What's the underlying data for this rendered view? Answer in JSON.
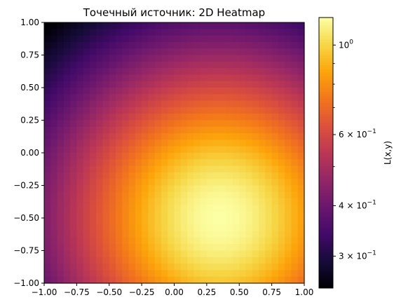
{
  "chart_data": {
    "type": "heatmap",
    "title": "Точечный источник: 2D Heatmap",
    "xlabel": "",
    "ylabel": "",
    "xlim": [
      -1.0,
      1.0
    ],
    "ylim": [
      -1.0,
      1.0
    ],
    "x_ticks": [
      "−1.00",
      "−0.75",
      "−0.50",
      "−0.25",
      "0.00",
      "0.25",
      "0.50",
      "0.75",
      "1.00"
    ],
    "y_ticks": [
      "−1.00",
      "−0.75",
      "−0.50",
      "−0.25",
      "0.00",
      "0.25",
      "0.50",
      "0.75",
      "1.00"
    ],
    "grid": {
      "nx": 40,
      "ny": 40
    },
    "field": {
      "description_of_source": "point source",
      "source_x": 0.35,
      "source_y": -0.5,
      "peak_value": 1.17,
      "model": "L = peak / (1 + ((x-source_x)^2 + (y-source_y)^2) / 1.05)"
    },
    "colormap": "inferno",
    "colorbar": {
      "label": "L(x,y)",
      "scale": "log",
      "range": [
        0.25,
        1.17
      ],
      "major_ticks": [
        {
          "value": 1.0,
          "base": "10",
          "exp": "0"
        },
        {
          "value": 0.6,
          "base": "6 × 10",
          "exp": "−1"
        },
        {
          "value": 0.4,
          "base": "4 × 10",
          "exp": "−1"
        },
        {
          "value": 0.3,
          "base": "3 × 10",
          "exp": "−1"
        }
      ],
      "minor_ticks": [
        0.5,
        0.7,
        0.8,
        0.9
      ]
    }
  }
}
